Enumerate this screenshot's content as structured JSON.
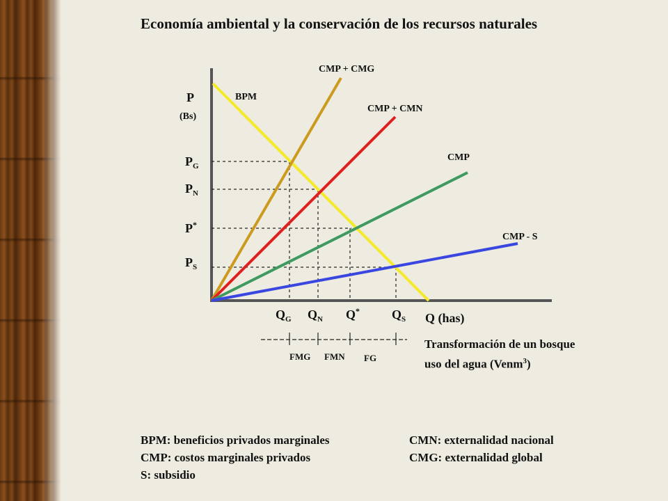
{
  "title": "Economía ambiental y la conservación de los recursos naturales",
  "y_axis": {
    "label": "P",
    "unit": "(Bs)"
  },
  "x_axis": {
    "label": "Q (has)"
  },
  "curves": [
    {
      "id": "bpm",
      "label": "BPM",
      "color": "#f4ea2a"
    },
    {
      "id": "cmp_cmg",
      "label": "CMP + CMG",
      "color": "#cc9a1e"
    },
    {
      "id": "cmp_cmn",
      "label": "CMP + CMN",
      "color": "#e02020"
    },
    {
      "id": "cmp",
      "label": "CMP",
      "color": "#3e9a5e"
    },
    {
      "id": "cmp_s",
      "label": "CMP - S",
      "color": "#3a46e0"
    }
  ],
  "price_ticks": [
    {
      "base": "P",
      "sub": "G",
      "sup": ""
    },
    {
      "base": "P",
      "sub": "N",
      "sup": ""
    },
    {
      "base": "P",
      "sub": "",
      "sup": "*"
    },
    {
      "base": "P",
      "sub": "S",
      "sup": ""
    }
  ],
  "quantity_ticks": [
    {
      "base": "Q",
      "sub": "G",
      "sup": ""
    },
    {
      "base": "Q",
      "sub": "N",
      "sup": ""
    },
    {
      "base": "Q",
      "sub": "",
      "sup": "*"
    },
    {
      "base": "Q",
      "sub": "S",
      "sup": ""
    }
  ],
  "segments": [
    "FMG",
    "FMN",
    "FG"
  ],
  "description": {
    "text": "Transformación de un bosque uso del agua (Venm",
    "sup": "3",
    "tail": ")"
  },
  "legend": [
    "BPM: beneficios privados marginales",
    "CMP: costos marginales privados",
    "S: subsidio",
    "CMN: externalidad nacional",
    "CMG: externalidad global"
  ]
}
